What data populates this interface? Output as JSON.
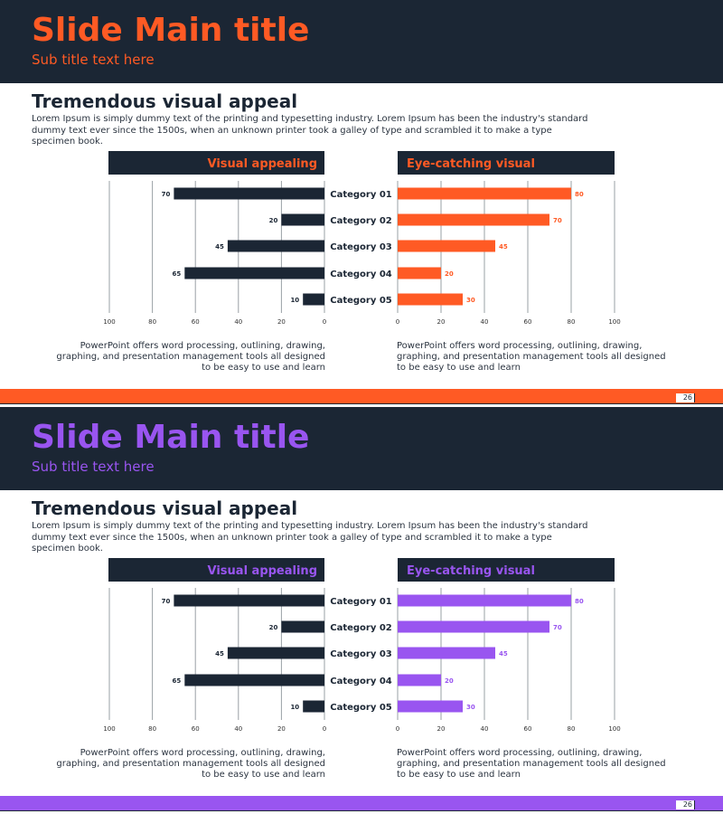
{
  "slides": [
    {
      "accent": "#ff5a24",
      "title": "Slide Main title",
      "subtitle": "Sub title text here",
      "heading": "Tremendous visual appeal",
      "paragraph": "Lorem Ipsum is simply dummy text of the printing and typesetting industry. Lorem Ipsum has been the industry's standard dummy text ever since the 1500s, when an unknown printer took a galley of type and scrambled it to make a type specimen book.",
      "caption_left": "PowerPoint offers word processing, outlining, drawing, graphing, and presentation management tools all designed to be easy to use and learn",
      "caption_right": "PowerPoint offers word processing, outlining, drawing, graphing, and presentation management tools all designed to be easy to use and learn",
      "page_number": "26",
      "chart_data": {
        "type": "bar",
        "categories": [
          "Category 01",
          "Category 02",
          "Category 03",
          "Category 04",
          "Category 05"
        ],
        "series": [
          {
            "name": "Visual appealing",
            "values": [
              70,
              20,
              45,
              65,
              10
            ],
            "color": "#1b2634"
          },
          {
            "name": "Eye-catching visual",
            "values": [
              80,
              70,
              45,
              20,
              30
            ],
            "color": "#ff5a24"
          }
        ],
        "left_ticks": [
          "100",
          "80",
          "60",
          "40",
          "20",
          "0"
        ],
        "right_ticks": [
          "0",
          "20",
          "40",
          "60",
          "80",
          "100"
        ],
        "xlim": [
          0,
          100
        ],
        "grid": true
      }
    },
    {
      "accent": "#9955f0",
      "title": "Slide Main title",
      "subtitle": "Sub title text here",
      "heading": "Tremendous visual appeal",
      "paragraph": "Lorem Ipsum is simply dummy text of the printing and typesetting industry. Lorem Ipsum has been the industry's standard dummy text ever since the 1500s, when an unknown printer took a galley of type and scrambled it to make a type specimen book.",
      "caption_left": "PowerPoint offers word processing, outlining, drawing, graphing, and presentation management tools all designed to be easy to use and learn",
      "caption_right": "PowerPoint offers word processing, outlining, drawing, graphing, and presentation management tools all designed to be easy to use and learn",
      "page_number": "26",
      "chart_data": {
        "type": "bar",
        "categories": [
          "Category 01",
          "Category 02",
          "Category 03",
          "Category 04",
          "Category 05"
        ],
        "series": [
          {
            "name": "Visual appealing",
            "values": [
              70,
              20,
              45,
              65,
              10
            ],
            "color": "#1b2634"
          },
          {
            "name": "Eye-catching visual",
            "values": [
              80,
              70,
              45,
              20,
              30
            ],
            "color": "#9955f0"
          }
        ],
        "left_ticks": [
          "100",
          "80",
          "60",
          "40",
          "20",
          "0"
        ],
        "right_ticks": [
          "0",
          "20",
          "40",
          "60",
          "80",
          "100"
        ],
        "xlim": [
          0,
          100
        ],
        "grid": true
      }
    }
  ]
}
